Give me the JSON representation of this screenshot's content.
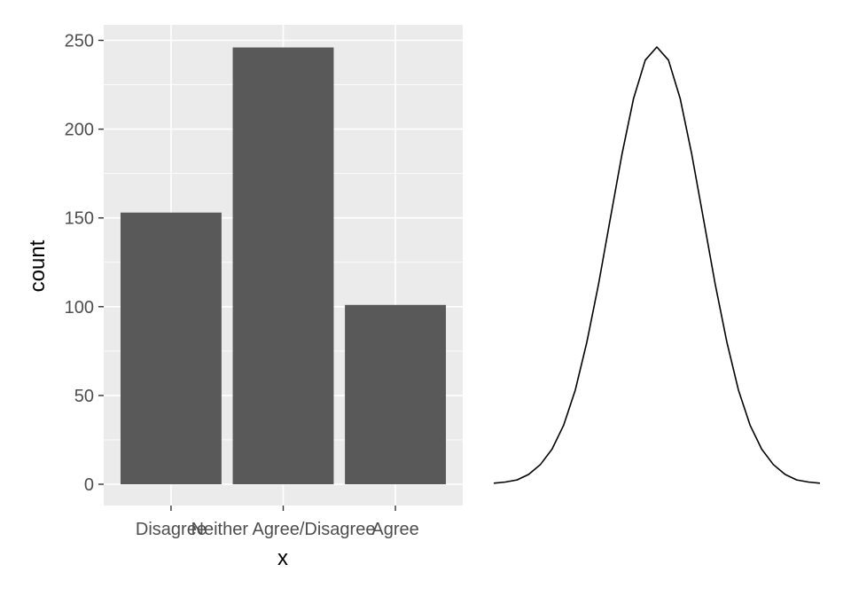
{
  "chart_data": [
    {
      "type": "bar",
      "categories": [
        "Disagree",
        "Neither Agree/Disagree",
        "Agree"
      ],
      "values": [
        153,
        246,
        101
      ],
      "xlabel": "x",
      "ylabel": "count",
      "ylim": [
        0,
        262
      ],
      "yticks": [
        0,
        50,
        100,
        150,
        200,
        250
      ],
      "grid": true,
      "colors": {
        "bar": "#595959",
        "panel": "#ebebeb",
        "grid": "#ffffff",
        "tick": "#333333"
      }
    },
    {
      "type": "line",
      "shape": "normal-density",
      "x": [
        -3.5,
        -3.25,
        -3,
        -2.75,
        -2.5,
        -2.25,
        -2,
        -1.75,
        -1.5,
        -1.25,
        -1,
        -0.75,
        -0.5,
        -0.25,
        0,
        0.25,
        0.5,
        0.75,
        1,
        1.25,
        1.5,
        1.75,
        2,
        2.25,
        2.5,
        2.75,
        3,
        3.25,
        3.5
      ],
      "y": [
        0.001,
        0.002,
        0.004,
        0.009,
        0.018,
        0.032,
        0.054,
        0.086,
        0.13,
        0.183,
        0.242,
        0.301,
        0.352,
        0.387,
        0.399,
        0.387,
        0.352,
        0.301,
        0.242,
        0.183,
        0.13,
        0.086,
        0.054,
        0.032,
        0.018,
        0.009,
        0.004,
        0.002,
        0.001
      ],
      "axes": false,
      "colors": {
        "line": "#000000"
      }
    }
  ]
}
